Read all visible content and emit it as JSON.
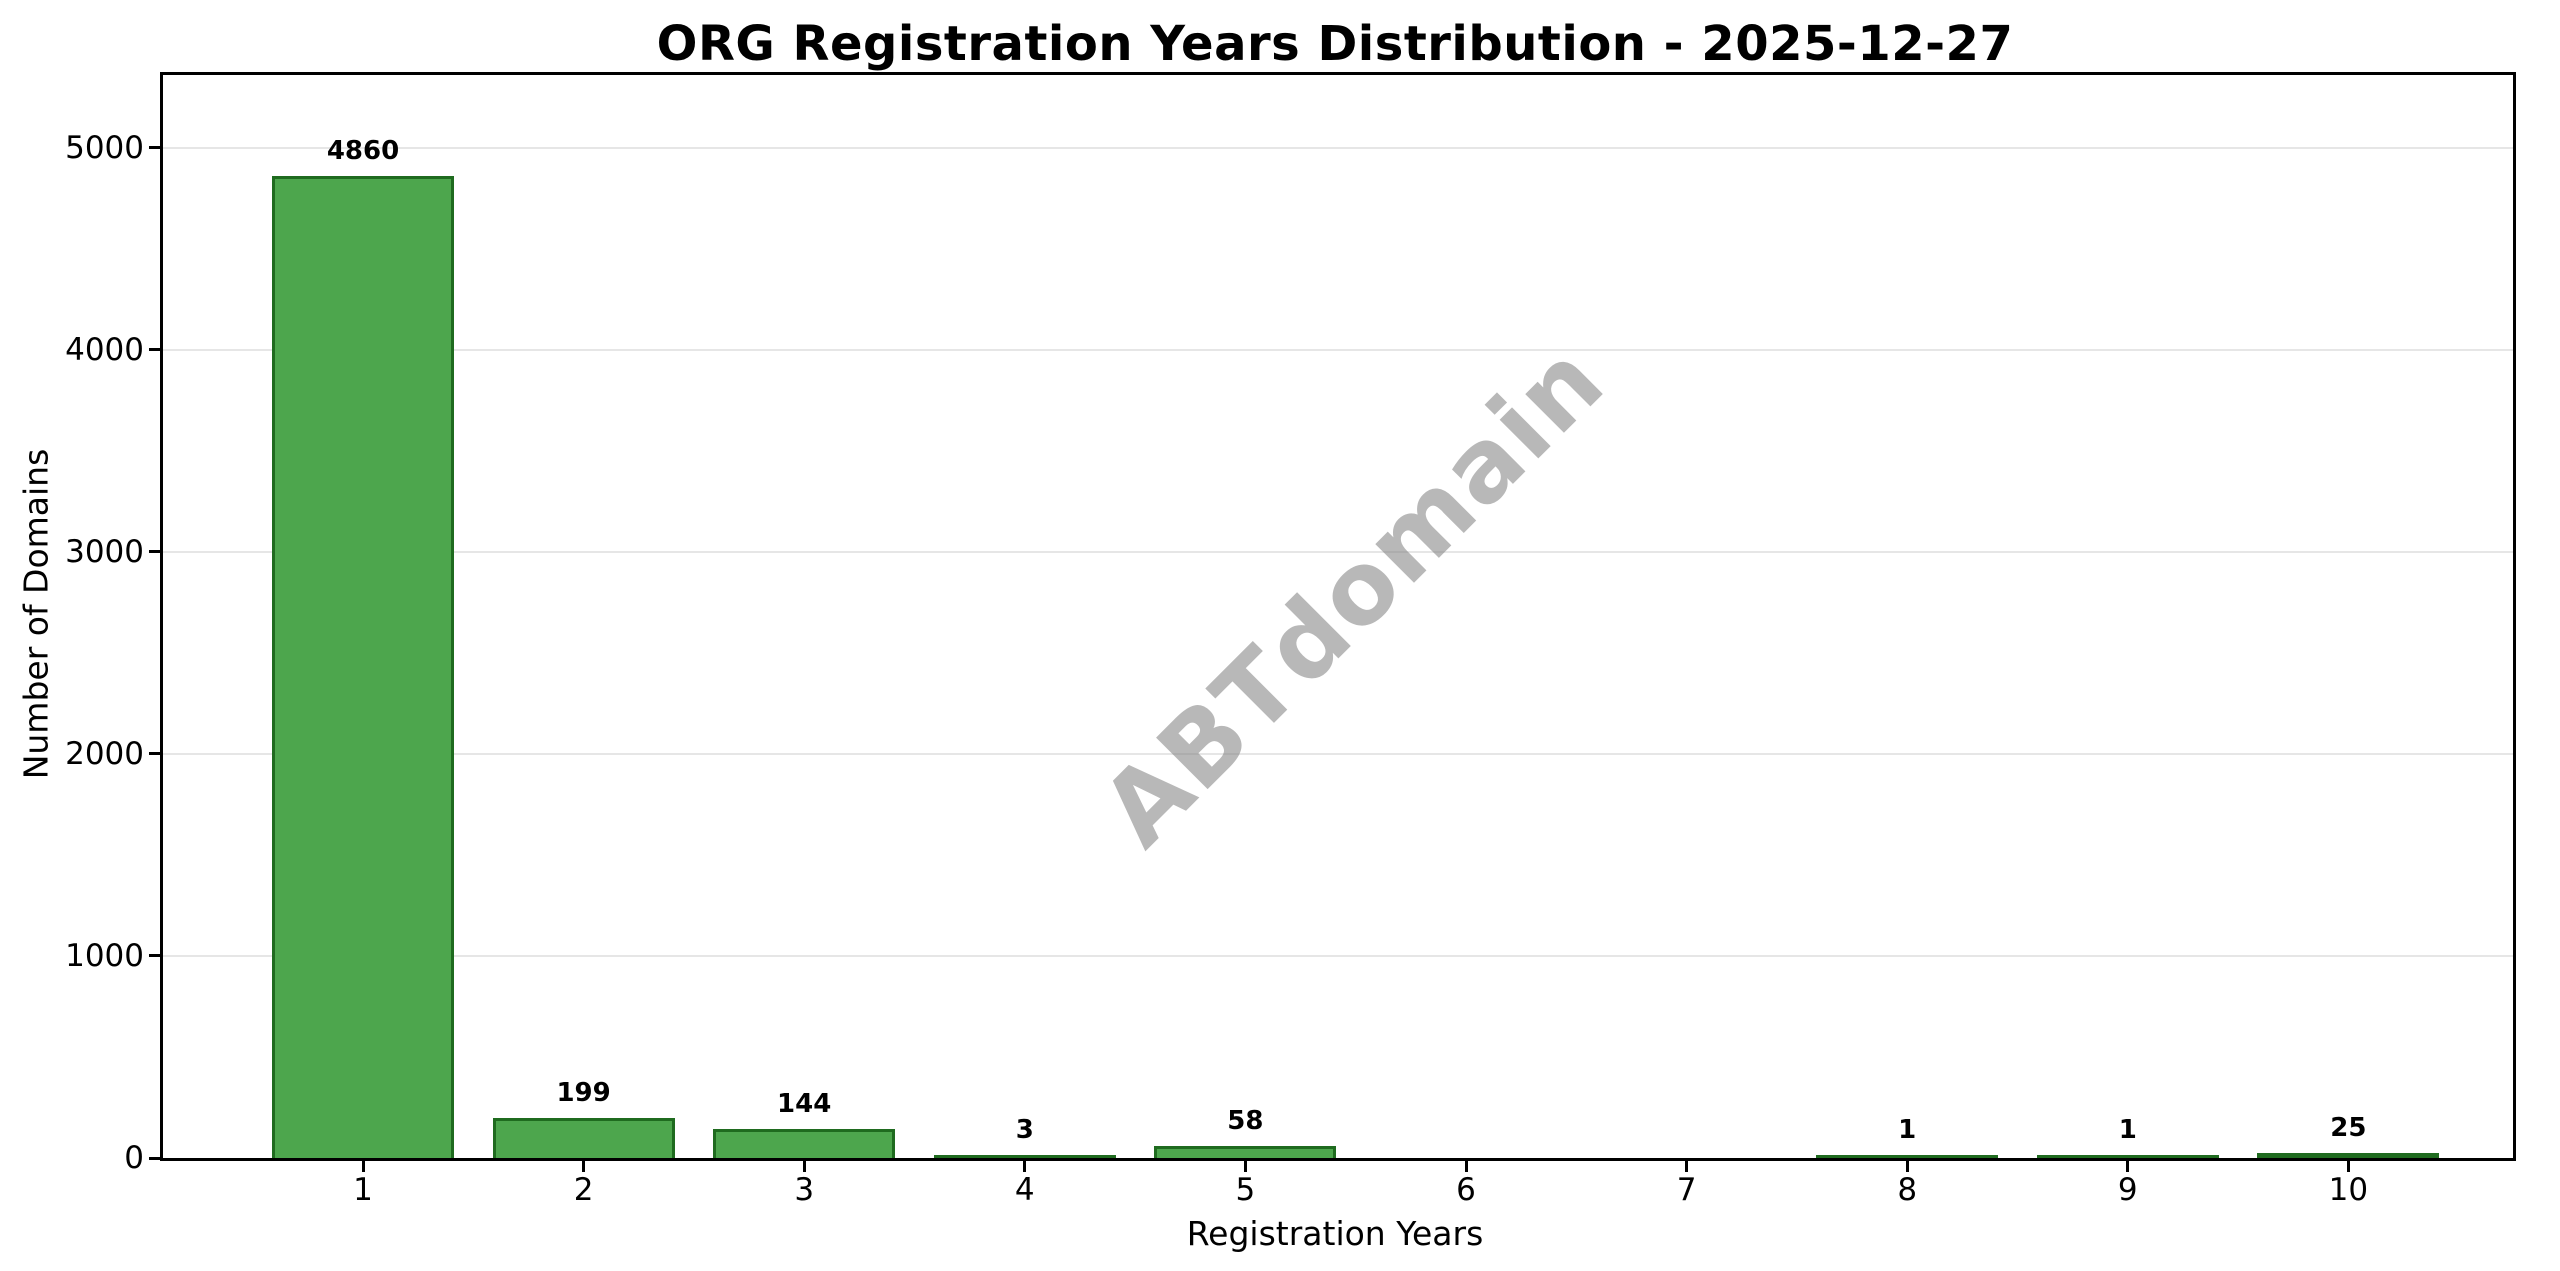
{
  "figure": {
    "background": "#ffffff"
  },
  "chart_data": {
    "type": "bar",
    "title": "ORG Registration Years Distribution - 2025-12-27",
    "xlabel": "Registration Years",
    "ylabel": "Number of Domains",
    "categories": [
      "1",
      "2",
      "3",
      "4",
      "5",
      "6",
      "7",
      "8",
      "9",
      "10"
    ],
    "values": [
      4860,
      199,
      144,
      3,
      58,
      0,
      0,
      1,
      1,
      25
    ],
    "bar_labels": [
      "4860",
      "199",
      "144",
      "3",
      "58",
      "",
      "",
      "1",
      "1",
      "25"
    ],
    "yticks": [
      0,
      1000,
      2000,
      3000,
      4000,
      5000
    ],
    "ylim": [
      0,
      5360
    ],
    "grid": "horizontal",
    "legend": "none",
    "bar_color": "#4da64d",
    "bar_edge_color": "#1f6b1f",
    "grid_color": "#e6e6e6",
    "watermark": "ABTdomain"
  }
}
